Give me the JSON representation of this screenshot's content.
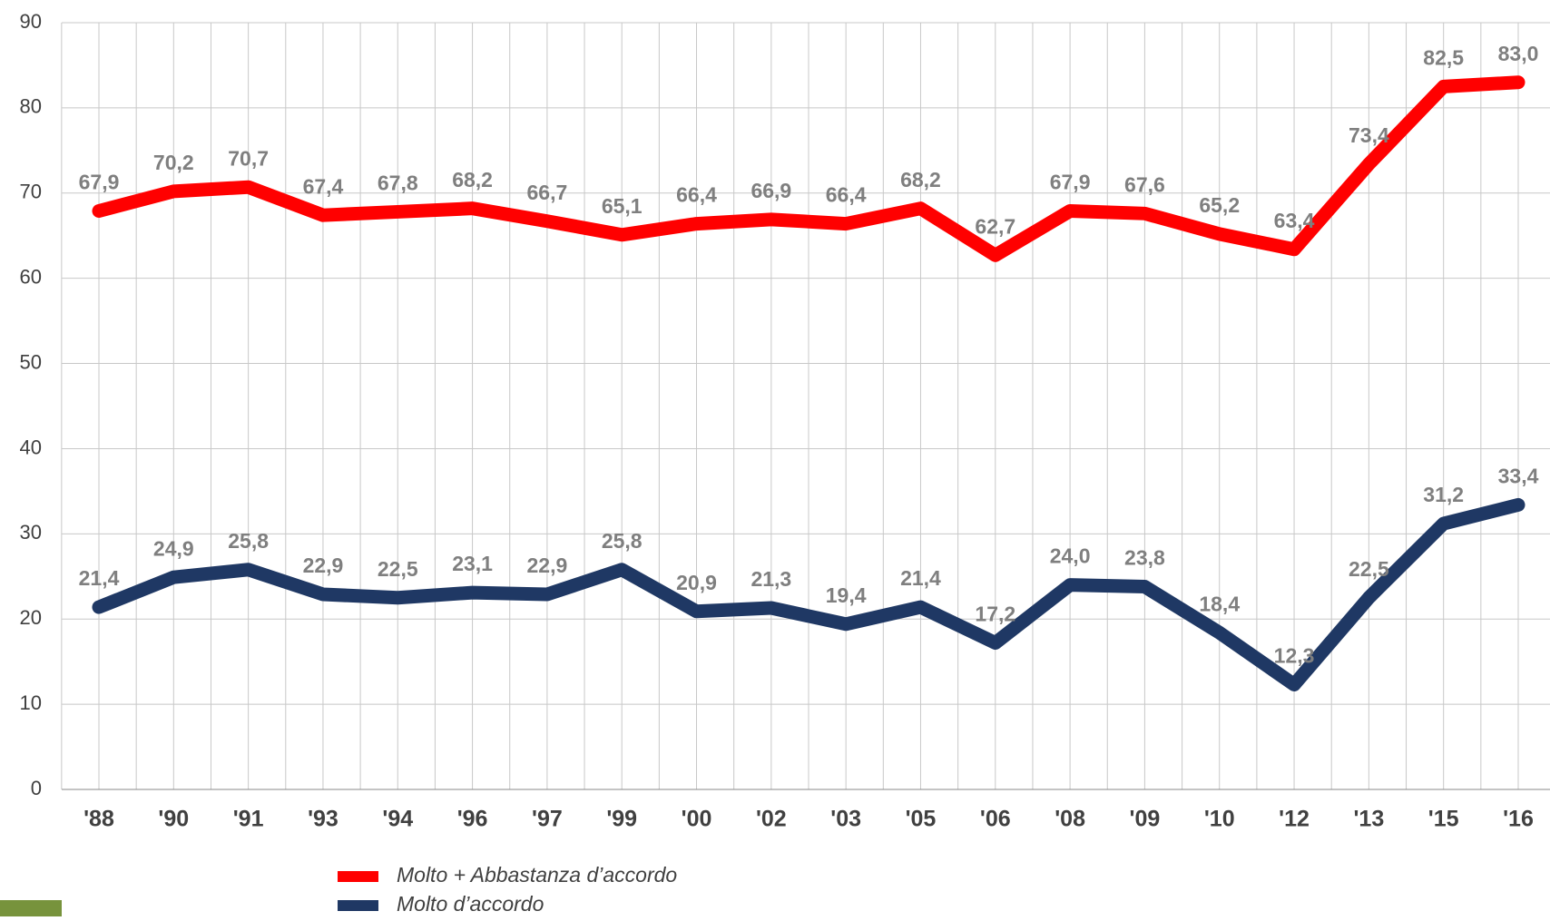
{
  "chart_data": {
    "type": "line",
    "categories": [
      "'88",
      "'90",
      "'91",
      "'93",
      "'94",
      "'96",
      "'97",
      "'99",
      "'00",
      "'02",
      "'03",
      "'05",
      "'06",
      "'08",
      "'09",
      "'10",
      "'12",
      "'13",
      "'15",
      "'16"
    ],
    "series": [
      {
        "name": "Molto + Abbastanza d’accordo",
        "color": "#ff0000",
        "values": [
          67.9,
          70.2,
          70.7,
          67.4,
          67.8,
          68.2,
          66.7,
          65.1,
          66.4,
          66.9,
          66.4,
          68.2,
          62.7,
          67.9,
          67.6,
          65.2,
          63.4,
          73.4,
          82.5,
          83.0
        ],
        "value_labels": [
          "67,9",
          "70,2",
          "70,7",
          "67,4",
          "67,8",
          "68,2",
          "66,7",
          "65,1",
          "66,4",
          "66,9",
          "66,4",
          "68,2",
          "62,7",
          "67,9",
          "67,6",
          "65,2",
          "63,4",
          "73,4",
          "82,5",
          "83,0"
        ]
      },
      {
        "name": "Molto d’accordo",
        "color": "#1f3864",
        "values": [
          21.4,
          24.9,
          25.8,
          22.9,
          22.5,
          23.1,
          22.9,
          25.8,
          20.9,
          21.3,
          19.4,
          21.4,
          17.2,
          24.0,
          23.8,
          18.4,
          12.3,
          22.5,
          31.2,
          33.4
        ],
        "value_labels": [
          "21,4",
          "24,9",
          "25,8",
          "22,9",
          "22,5",
          "23,1",
          "22,9",
          "25,8",
          "20,9",
          "21,3",
          "19,4",
          "21,4",
          "17,2",
          "24,0",
          "23,8",
          "18,4",
          "12,3",
          "22,5",
          "31,2",
          "33,4"
        ]
      }
    ],
    "ylim": [
      0,
      90
    ],
    "yticks": [
      0,
      10,
      20,
      30,
      40,
      50,
      60,
      70,
      80,
      90
    ],
    "grid": true
  }
}
